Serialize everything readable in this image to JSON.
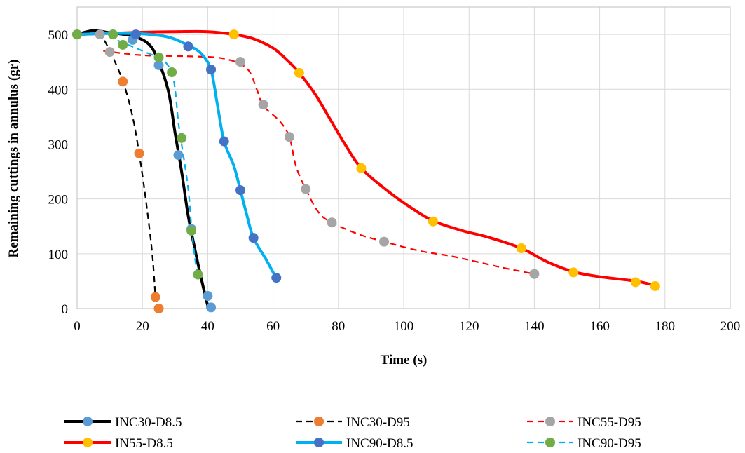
{
  "chart_data": {
    "type": "line",
    "xlabel": "Time (s)",
    "ylabel": "Remaining cuttings in annulus (gr)",
    "xlim": [
      0,
      200
    ],
    "ylim": [
      0,
      550
    ],
    "xticks": [
      0,
      20,
      40,
      60,
      80,
      100,
      120,
      140,
      160,
      180,
      200
    ],
    "yticks": [
      0,
      100,
      200,
      300,
      400,
      500
    ],
    "grid": true,
    "legend_position": "bottom",
    "series": [
      {
        "name": "INC30-D8.5",
        "line_color": "#000000",
        "marker_color": "#5b9bd5",
        "dashed": false,
        "curve": [
          [
            0,
            500
          ],
          [
            5,
            507
          ],
          [
            10,
            503
          ],
          [
            17,
            497
          ],
          [
            22,
            482
          ],
          [
            25,
            450
          ],
          [
            28,
            395
          ],
          [
            30,
            320
          ],
          [
            32,
            250
          ],
          [
            34,
            170
          ],
          [
            36,
            110
          ],
          [
            38,
            55
          ],
          [
            40,
            5
          ]
        ],
        "points": [
          [
            0,
            500
          ],
          [
            7,
            500
          ],
          [
            11,
            500
          ],
          [
            17,
            490
          ],
          [
            25,
            444
          ],
          [
            31,
            280
          ],
          [
            35,
            145
          ],
          [
            40,
            23
          ],
          [
            41,
            2
          ]
        ]
      },
      {
        "name": "INC30-D95",
        "line_color": "#000000",
        "marker_color": "#ed7d31",
        "dashed": true,
        "curve": [
          [
            0,
            500
          ],
          [
            4,
            505
          ],
          [
            7,
            500
          ],
          [
            10,
            470
          ],
          [
            14,
            415
          ],
          [
            17,
            350
          ],
          [
            19,
            283
          ],
          [
            21,
            200
          ],
          [
            23,
            100
          ],
          [
            24,
            20
          ]
        ],
        "points": [
          [
            0,
            500
          ],
          [
            14,
            414
          ],
          [
            19,
            283
          ],
          [
            24,
            21
          ],
          [
            25,
            0
          ]
        ]
      },
      {
        "name": "INC55-D95",
        "line_color": "#ff0000",
        "marker_color": "#a5a5a5",
        "dashed": true,
        "curve": [
          [
            8,
            470
          ],
          [
            20,
            462
          ],
          [
            35,
            460
          ],
          [
            45,
            456
          ],
          [
            52,
            438
          ],
          [
            55,
            400
          ],
          [
            57,
            370
          ],
          [
            62,
            342
          ],
          [
            65,
            313
          ],
          [
            67,
            260
          ],
          [
            70,
            218
          ],
          [
            74,
            175
          ],
          [
            78,
            157
          ],
          [
            86,
            136
          ],
          [
            94,
            122
          ],
          [
            105,
            105
          ],
          [
            115,
            95
          ],
          [
            130,
            75
          ],
          [
            140,
            63
          ]
        ],
        "points": [
          [
            0,
            500
          ],
          [
            7,
            500
          ],
          [
            10,
            468
          ],
          [
            50,
            450
          ],
          [
            57,
            372
          ],
          [
            65,
            313
          ],
          [
            70,
            218
          ],
          [
            78,
            157
          ],
          [
            94,
            122
          ],
          [
            140,
            63
          ]
        ]
      },
      {
        "name": "IN55-D8.5",
        "line_color": "#ff0000",
        "marker_color": "#ffc000",
        "dashed": false,
        "curve": [
          [
            0,
            500
          ],
          [
            20,
            504
          ],
          [
            30,
            505
          ],
          [
            40,
            505
          ],
          [
            48,
            500
          ],
          [
            54,
            492
          ],
          [
            60,
            475
          ],
          [
            64,
            455
          ],
          [
            68,
            430
          ],
          [
            73,
            390
          ],
          [
            78,
            340
          ],
          [
            82,
            300
          ],
          [
            87,
            256
          ],
          [
            95,
            215
          ],
          [
            102,
            185
          ],
          [
            109,
            160
          ],
          [
            118,
            142
          ],
          [
            126,
            130
          ],
          [
            136,
            110
          ],
          [
            144,
            85
          ],
          [
            152,
            67
          ],
          [
            160,
            58
          ],
          [
            171,
            50
          ],
          [
            177,
            42
          ]
        ],
        "points": [
          [
            48,
            500
          ],
          [
            68,
            430
          ],
          [
            87,
            256
          ],
          [
            109,
            159
          ],
          [
            136,
            110
          ],
          [
            152,
            66
          ],
          [
            171,
            48
          ],
          [
            177,
            41
          ]
        ]
      },
      {
        "name": "INC90-D8.5",
        "line_color": "#00b0f0",
        "marker_color": "#4472c4",
        "dashed": false,
        "curve": [
          [
            0,
            500
          ],
          [
            10,
            502
          ],
          [
            20,
            501
          ],
          [
            28,
            495
          ],
          [
            34,
            480
          ],
          [
            38,
            465
          ],
          [
            41,
            435
          ],
          [
            43,
            370
          ],
          [
            45,
            305
          ],
          [
            48,
            260
          ],
          [
            50,
            216
          ],
          [
            52,
            170
          ],
          [
            54,
            129
          ],
          [
            58,
            88
          ],
          [
            61,
            55
          ]
        ],
        "points": [
          [
            18,
            500
          ],
          [
            34,
            478
          ],
          [
            41,
            436
          ],
          [
            45,
            305
          ],
          [
            50,
            216
          ],
          [
            54,
            129
          ],
          [
            61,
            56
          ]
        ]
      },
      {
        "name": "INC90-D95",
        "line_color": "#00b0f0",
        "marker_color": "#70ad47",
        "dashed": true,
        "curve": [
          [
            0,
            500
          ],
          [
            8,
            501
          ],
          [
            12,
            490
          ],
          [
            18,
            475
          ],
          [
            22,
            465
          ],
          [
            25,
            458
          ],
          [
            27,
            450
          ],
          [
            29,
            430
          ],
          [
            30,
            400
          ],
          [
            31,
            340
          ],
          [
            32,
            300
          ],
          [
            34,
            220
          ],
          [
            35,
            150
          ],
          [
            36,
            95
          ],
          [
            37,
            62
          ]
        ],
        "points": [
          [
            0,
            500
          ],
          [
            11,
            500
          ],
          [
            14,
            481
          ],
          [
            25,
            458
          ],
          [
            29,
            431
          ],
          [
            32,
            311
          ],
          [
            35,
            142
          ],
          [
            37,
            62
          ]
        ]
      }
    ]
  }
}
